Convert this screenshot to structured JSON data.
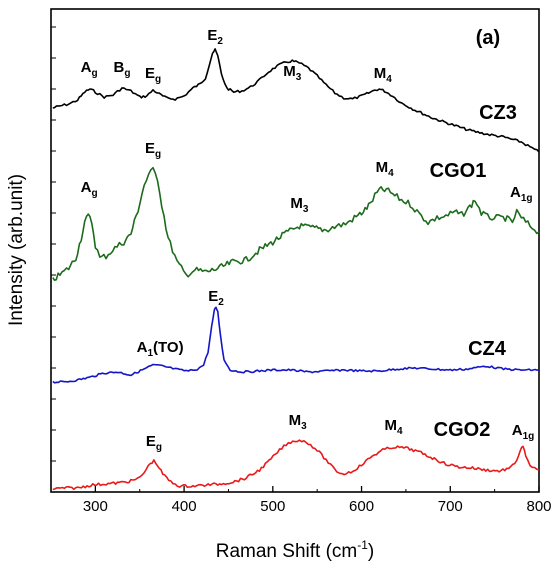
{
  "chart_data": {
    "type": "line",
    "panel_label": "(a)",
    "xlabel_main": "Raman Shift (cm",
    "xlabel_sup": "-1",
    "xlabel_tail": ")",
    "ylabel": "Intensity (arb.unit)",
    "xlim": [
      250,
      800
    ],
    "x_ticks": [
      300,
      400,
      500,
      600,
      700,
      800
    ],
    "y_ticks_labeled": false,
    "grid": false,
    "legend": "none (series labelled inline)",
    "series": [
      {
        "name": "CZ3",
        "color": "#000000",
        "points": [
          [
            252,
            108
          ],
          [
            260,
            106
          ],
          [
            270,
            104
          ],
          [
            280,
            100
          ],
          [
            288,
            92
          ],
          [
            294,
            89
          ],
          [
            300,
            92
          ],
          [
            310,
            97
          ],
          [
            320,
            95
          ],
          [
            330,
            88
          ],
          [
            340,
            91
          ],
          [
            350,
            97
          ],
          [
            358,
            96
          ],
          [
            365,
            90
          ],
          [
            372,
            94
          ],
          [
            380,
            98
          ],
          [
            390,
            99
          ],
          [
            400,
            96
          ],
          [
            410,
            88
          ],
          [
            418,
            84
          ],
          [
            424,
            78
          ],
          [
            428,
            66
          ],
          [
            432,
            53
          ],
          [
            435,
            50
          ],
          [
            438,
            56
          ],
          [
            442,
            74
          ],
          [
            448,
            88
          ],
          [
            456,
            92
          ],
          [
            465,
            91
          ],
          [
            475,
            87
          ],
          [
            485,
            80
          ],
          [
            495,
            72
          ],
          [
            505,
            66
          ],
          [
            515,
            62
          ],
          [
            522,
            61
          ],
          [
            530,
            63
          ],
          [
            540,
            68
          ],
          [
            550,
            76
          ],
          [
            560,
            85
          ],
          [
            570,
            93
          ],
          [
            580,
            98
          ],
          [
            590,
            99
          ],
          [
            600,
            96
          ],
          [
            608,
            93
          ],
          [
            615,
            90
          ],
          [
            620,
            89
          ],
          [
            626,
            91
          ],
          [
            635,
            96
          ],
          [
            645,
            103
          ],
          [
            660,
            110
          ],
          [
            680,
            118
          ],
          [
            700,
            124
          ],
          [
            720,
            130
          ],
          [
            740,
            134
          ],
          [
            760,
            137
          ],
          [
            780,
            142
          ],
          [
            790,
            147
          ],
          [
            800,
            152
          ]
        ]
      },
      {
        "name": "CGO1",
        "color": "#1c6b1c",
        "points": [
          [
            252,
            280
          ],
          [
            260,
            275
          ],
          [
            270,
            268
          ],
          [
            278,
            258
          ],
          [
            284,
            238
          ],
          [
            288,
            222
          ],
          [
            292,
            216
          ],
          [
            296,
            222
          ],
          [
            300,
            245
          ],
          [
            305,
            258
          ],
          [
            312,
            256
          ],
          [
            322,
            248
          ],
          [
            332,
            242
          ],
          [
            340,
            234
          ],
          [
            348,
            210
          ],
          [
            355,
            185
          ],
          [
            360,
            175
          ],
          [
            365,
            170
          ],
          [
            370,
            178
          ],
          [
            375,
            205
          ],
          [
            382,
            238
          ],
          [
            392,
            262
          ],
          [
            402,
            275
          ],
          [
            412,
            270
          ],
          [
            425,
            272
          ],
          [
            440,
            268
          ],
          [
            455,
            262
          ],
          [
            470,
            260
          ],
          [
            485,
            250
          ],
          [
            500,
            242
          ],
          [
            515,
            233
          ],
          [
            530,
            226
          ],
          [
            545,
            228
          ],
          [
            560,
            230
          ],
          [
            572,
            226
          ],
          [
            582,
            224
          ],
          [
            592,
            218
          ],
          [
            600,
            213
          ],
          [
            608,
            206
          ],
          [
            615,
            196
          ],
          [
            620,
            190
          ],
          [
            628,
            190
          ],
          [
            635,
            194
          ],
          [
            645,
            200
          ],
          [
            655,
            204
          ],
          [
            665,
            214
          ],
          [
            675,
            222
          ],
          [
            685,
            218
          ],
          [
            695,
            216
          ],
          [
            705,
            212
          ],
          [
            713,
            215
          ],
          [
            720,
            209
          ],
          [
            728,
            200
          ],
          [
            735,
            213
          ],
          [
            742,
            217
          ],
          [
            752,
            218
          ],
          [
            762,
            218
          ],
          [
            770,
            222
          ],
          [
            775,
            212
          ],
          [
            780,
            218
          ],
          [
            790,
            226
          ],
          [
            800,
            232
          ]
        ]
      },
      {
        "name": "CZ4",
        "color": "#1515c8",
        "points": [
          [
            252,
            382
          ],
          [
            265,
            382
          ],
          [
            280,
            380
          ],
          [
            295,
            377
          ],
          [
            310,
            373
          ],
          [
            325,
            372
          ],
          [
            340,
            375
          ],
          [
            355,
            369
          ],
          [
            365,
            365
          ],
          [
            375,
            366
          ],
          [
            385,
            368
          ],
          [
            395,
            370
          ],
          [
            405,
            371
          ],
          [
            415,
            369
          ],
          [
            422,
            365
          ],
          [
            427,
            352
          ],
          [
            431,
            327
          ],
          [
            434,
            311
          ],
          [
            436,
            307
          ],
          [
            438,
            312
          ],
          [
            441,
            335
          ],
          [
            445,
            360
          ],
          [
            452,
            370
          ],
          [
            465,
            372
          ],
          [
            485,
            371
          ],
          [
            500,
            370
          ],
          [
            520,
            370
          ],
          [
            540,
            372
          ],
          [
            560,
            371
          ],
          [
            580,
            370
          ],
          [
            600,
            371
          ],
          [
            620,
            371
          ],
          [
            640,
            369
          ],
          [
            660,
            368
          ],
          [
            680,
            369
          ],
          [
            700,
            370
          ],
          [
            720,
            369
          ],
          [
            740,
            366
          ],
          [
            760,
            369
          ],
          [
            780,
            370
          ],
          [
            800,
            370
          ]
        ]
      },
      {
        "name": "CGO2",
        "color": "#e81a1a",
        "points": [
          [
            252,
            489
          ],
          [
            265,
            488
          ],
          [
            280,
            488
          ],
          [
            295,
            485
          ],
          [
            310,
            484
          ],
          [
            325,
            483
          ],
          [
            340,
            481
          ],
          [
            350,
            478
          ],
          [
            357,
            470
          ],
          [
            362,
            463
          ],
          [
            366,
            461
          ],
          [
            370,
            465
          ],
          [
            376,
            474
          ],
          [
            385,
            482
          ],
          [
            395,
            486
          ],
          [
            410,
            486
          ],
          [
            425,
            485
          ],
          [
            440,
            484
          ],
          [
            455,
            482
          ],
          [
            470,
            478
          ],
          [
            485,
            470
          ],
          [
            498,
            459
          ],
          [
            510,
            448
          ],
          [
            520,
            442
          ],
          [
            530,
            440
          ],
          [
            540,
            443
          ],
          [
            550,
            450
          ],
          [
            560,
            460
          ],
          [
            570,
            470
          ],
          [
            578,
            474
          ],
          [
            588,
            472
          ],
          [
            600,
            465
          ],
          [
            612,
            456
          ],
          [
            624,
            450
          ],
          [
            636,
            447
          ],
          [
            650,
            448
          ],
          [
            665,
            452
          ],
          [
            680,
            458
          ],
          [
            695,
            464
          ],
          [
            710,
            467
          ],
          [
            725,
            468
          ],
          [
            740,
            470
          ],
          [
            755,
            471
          ],
          [
            768,
            468
          ],
          [
            775,
            460
          ],
          [
            779,
            450
          ],
          [
            782,
            447
          ],
          [
            785,
            455
          ],
          [
            790,
            467
          ],
          [
            800,
            470
          ]
        ]
      }
    ],
    "series_labels": [
      {
        "text": "CZ3",
        "color": "#000000"
      },
      {
        "text": "CGO1",
        "color": "#000000"
      },
      {
        "text": "CZ4",
        "color": "#000000"
      },
      {
        "text": "CGO2",
        "color": "#000000"
      }
    ],
    "annotations": [
      {
        "base": "A",
        "sub": "g",
        "at_x": 293,
        "series": "CZ3"
      },
      {
        "base": "B",
        "sub": "g",
        "at_x": 330,
        "series": "CZ3"
      },
      {
        "base": "E",
        "sub": "g",
        "at_x": 365,
        "series": "CZ3"
      },
      {
        "base": "E",
        "sub": "2",
        "at_x": 435,
        "series": "CZ3"
      },
      {
        "base": "M",
        "sub": "3",
        "at_x": 522,
        "series": "CZ3"
      },
      {
        "base": "M",
        "sub": "4",
        "at_x": 624,
        "series": "CZ3"
      },
      {
        "base": "A",
        "sub": "g",
        "at_x": 293,
        "series": "CGO1"
      },
      {
        "base": "E",
        "sub": "g",
        "at_x": 365,
        "series": "CGO1"
      },
      {
        "base": "M",
        "sub": "3",
        "at_x": 530,
        "series": "CGO1"
      },
      {
        "base": "M",
        "sub": "4",
        "at_x": 626,
        "series": "CGO1"
      },
      {
        "base": "A",
        "sub": "1g",
        "at_x": 780,
        "series": "CGO1"
      },
      {
        "base": "E",
        "sub": "2",
        "at_x": 436,
        "series": "CZ4"
      },
      {
        "base": "A",
        "sub": "1",
        "tail": "(TO)",
        "at_x": 373,
        "series": "CZ4"
      },
      {
        "base": "E",
        "sub": "g",
        "at_x": 366,
        "series": "CGO2"
      },
      {
        "base": "M",
        "sub": "3",
        "at_x": 528,
        "series": "CGO2"
      },
      {
        "base": "M",
        "sub": "4",
        "at_x": 636,
        "series": "CGO2"
      },
      {
        "base": "A",
        "sub": "1g",
        "at_x": 782,
        "series": "CGO2"
      }
    ]
  }
}
